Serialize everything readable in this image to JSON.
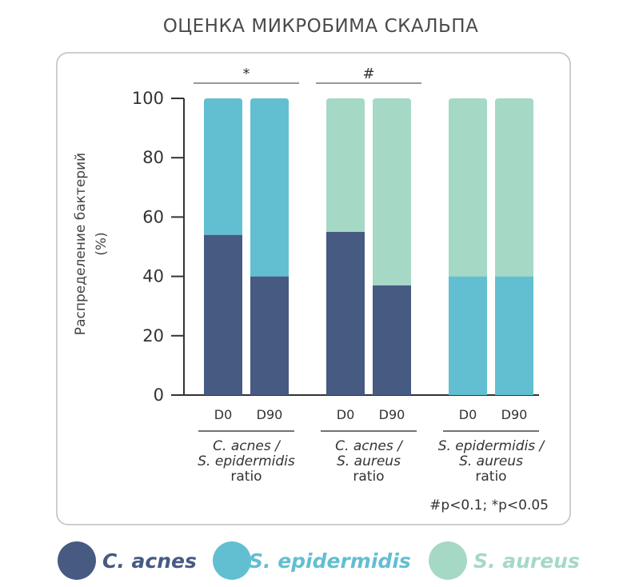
{
  "chart_data": {
    "type": "bar",
    "stacked": true,
    "title": "Оценка микробима скальпа",
    "ylabel": "Распределение бактерий",
    "ylabel_unit": "(%)",
    "ylim": [
      0,
      100
    ],
    "yticks": [
      "0",
      "20",
      "40",
      "60",
      "80",
      "100"
    ],
    "grid": false,
    "groups": [
      {
        "name_lines": [
          "C. acnes /",
          "S. epidermidis",
          "ratio"
        ],
        "significance": "*",
        "bars": [
          {
            "label": "D0",
            "segments": [
              {
                "series": "C. acnes",
                "value": 54
              },
              {
                "series": "S. epidermidis",
                "value": 46
              }
            ]
          },
          {
            "label": "D90",
            "segments": [
              {
                "series": "C. acnes",
                "value": 40
              },
              {
                "series": "S. epidermidis",
                "value": 60
              }
            ]
          }
        ]
      },
      {
        "name_lines": [
          "C. acnes /",
          "S. aureus",
          "ratio"
        ],
        "significance": "#",
        "bars": [
          {
            "label": "D0",
            "segments": [
              {
                "series": "C. acnes",
                "value": 55
              },
              {
                "series": "S. aureus",
                "value": 45
              }
            ]
          },
          {
            "label": "D90",
            "segments": [
              {
                "series": "C. acnes",
                "value": 37
              },
              {
                "series": "S. aureus",
                "value": 63
              }
            ]
          }
        ]
      },
      {
        "name_lines": [
          "S. epidermidis /",
          "S. aureus",
          "ratio"
        ],
        "significance": "",
        "bars": [
          {
            "label": "D0",
            "segments": [
              {
                "series": "S. epidermidis",
                "value": 40
              },
              {
                "series": "S. aureus",
                "value": 60
              }
            ]
          },
          {
            "label": "D90",
            "segments": [
              {
                "series": "S. epidermidis",
                "value": 40
              },
              {
                "series": "S. aureus",
                "value": 60
              }
            ]
          }
        ]
      }
    ],
    "series": [
      {
        "name": "C. acnes",
        "color": "#465a82"
      },
      {
        "name": "S. epidermidis",
        "color": "#62bfd1"
      },
      {
        "name": "S. aureus",
        "color": "#a6d8c6"
      }
    ],
    "note": "#p<0.1; *p<0.05",
    "legend_position": "bottom"
  }
}
